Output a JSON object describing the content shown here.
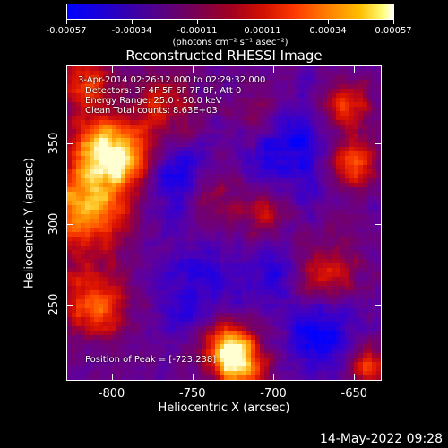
{
  "colorbar": {
    "ticks": [
      "-0.00057",
      "-0.00034",
      "-0.00011",
      "0.00011",
      "0.00034",
      "0.00057"
    ],
    "units": "(photons cm⁻² s⁻¹ asec⁻²)",
    "range": [
      -0.00057,
      0.00057
    ]
  },
  "chart_data": {
    "type": "heatmap",
    "title": "Reconstructed RHESSI Image",
    "xlabel": "Heliocentric X (arcsec)",
    "ylabel": "Heliocentric Y (arcsec)",
    "xlim": [
      -828,
      -633
    ],
    "ylim": [
      203,
      398
    ],
    "xticks": [
      -800,
      -750,
      -700,
      -650
    ],
    "xtick_labels": [
      "-800",
      "-750",
      "-700",
      "-650"
    ],
    "yticks": [
      250,
      300,
      350
    ],
    "ytick_labels": [
      "250",
      "300",
      "350"
    ],
    "annotations": [
      "3-Apr-2014 02:26:12.000 to 02:29:32.000",
      "Detectors: 3F 4F 5F 6F 7F 8F, Att 0",
      "Energy Range: 25.0 - 50.0 keV",
      "Clean       Total counts: 8.63E+03"
    ],
    "peak_text": "Position of Peak = [-723,238]",
    "peak_position": [
      -723,
      238
    ],
    "colormap": [
      "#0000ff",
      "#5a0080",
      "#a00020",
      "#ff3a00",
      "#ff8000",
      "#ffc000",
      "#ffffff"
    ]
  },
  "timestamp": "14-May-2022 09:28"
}
